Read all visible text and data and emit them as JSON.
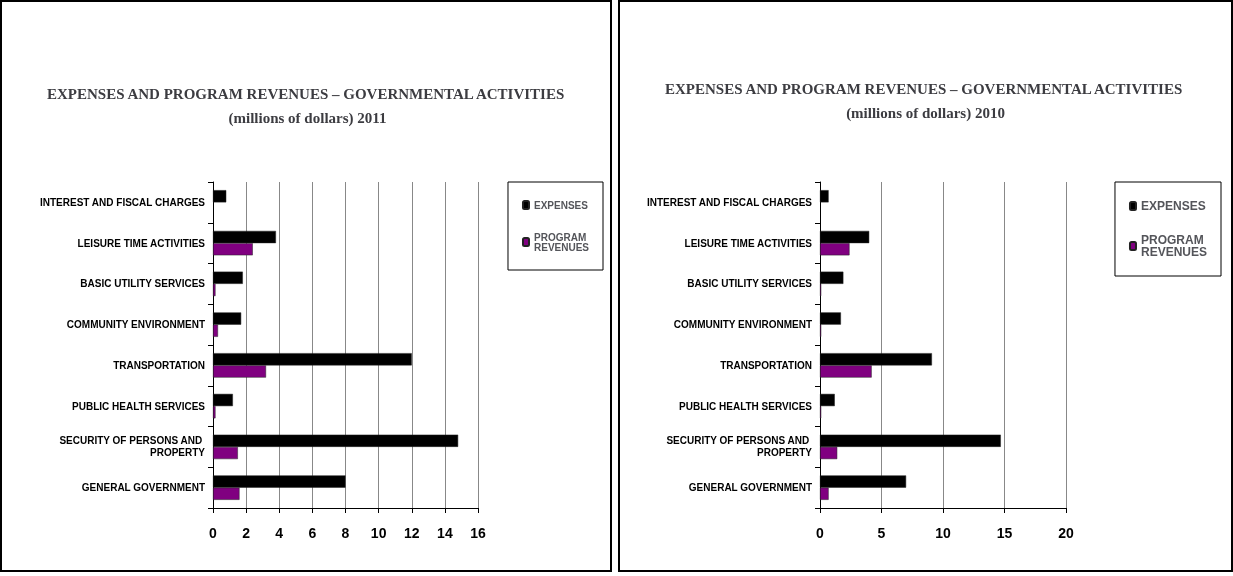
{
  "chart_data": [
    {
      "type": "bar",
      "orientation": "horizontal",
      "title": "EXPENSES AND PROGRAM REVENUES – GOVERNMENTAL ACTIVITIES (millions of dollars) 2011",
      "categories": [
        "INTEREST AND FISCAL CHARGES",
        "LEISURE TIME ACTIVITIES",
        "BASIC UTILITY SERVICES",
        "COMMUNITY ENVIRONMENT",
        "TRANSPORTATION",
        "PUBLIC HEALTH SERVICES",
        "SECURITY OF PERSONS AND PROPERTY",
        "GENERAL GOVERNMENT"
      ],
      "series": [
        {
          "name": "EXPENSES",
          "color": "#000000",
          "values": [
            0.8,
            3.8,
            1.8,
            1.7,
            12.0,
            1.2,
            14.8,
            8.0
          ]
        },
        {
          "name": "PROGRAM REVENUES",
          "color": "#800080",
          "values": [
            null,
            2.4,
            0.15,
            0.3,
            3.2,
            0.15,
            1.5,
            1.6
          ]
        }
      ],
      "xlim": [
        0,
        16
      ],
      "xticks": [
        0,
        2,
        4,
        6,
        8,
        10,
        12,
        14,
        16
      ],
      "grid": "x",
      "legend": "right"
    },
    {
      "type": "bar",
      "orientation": "horizontal",
      "title": "EXPENSES AND PROGRAM REVENUES – GOVERNMENTAL ACTIVITIES (millions of dollars) 2010",
      "categories": [
        "INTEREST AND FISCAL CHARGES",
        "LEISURE TIME ACTIVITIES",
        "BASIC UTILITY SERVICES",
        "COMMUNITY ENVIRONMENT",
        "TRANSPORTATION",
        "PUBLIC HEALTH SERVICES",
        "SECURITY OF PERSONS AND PROPERTY",
        "GENERAL GOVERNMENT"
      ],
      "series": [
        {
          "name": "EXPENSES",
          "color": "#000000",
          "values": [
            0.7,
            4.0,
            1.9,
            1.7,
            9.1,
            1.2,
            14.7,
            7.0
          ]
        },
        {
          "name": "PROGRAM REVENUES",
          "color": "#800080",
          "values": [
            null,
            2.4,
            0.1,
            0.1,
            4.2,
            0.1,
            1.4,
            0.7
          ]
        }
      ],
      "xlim": [
        0,
        20
      ],
      "xticks": [
        0,
        5,
        10,
        15,
        20
      ],
      "grid": "x",
      "legend": "right"
    }
  ]
}
